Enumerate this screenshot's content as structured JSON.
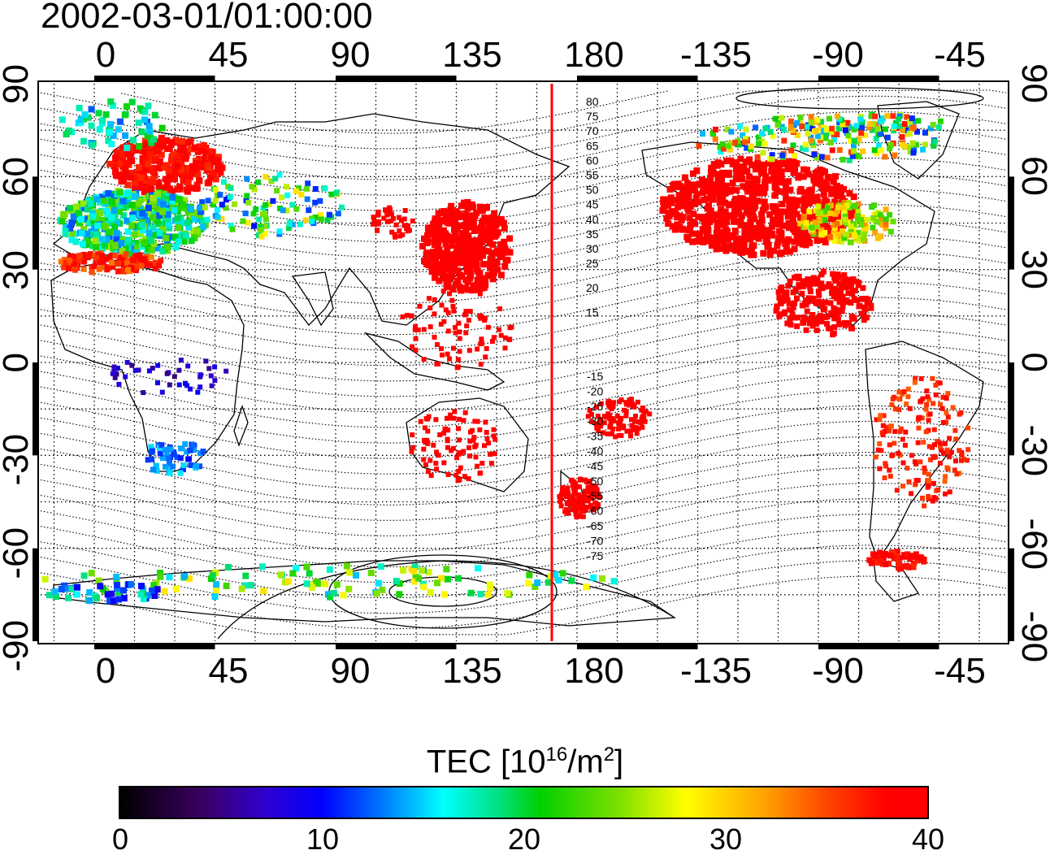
{
  "title": "2002-03-01/01:00:00",
  "axes": {
    "top_ticks": [
      "0",
      "45",
      "90",
      "135",
      "180",
      "-135",
      "-90",
      "-45"
    ],
    "bottom_ticks": [
      "0",
      "45",
      "90",
      "135",
      "180",
      "-135",
      "-90",
      "-45"
    ],
    "lat_ticks": [
      "90",
      "60",
      "30",
      "0",
      "-30",
      "-60",
      "-90"
    ]
  },
  "isoline_labels_north": [
    "80",
    "75",
    "70",
    "65",
    "60",
    "55",
    "50",
    "45",
    "40",
    "35",
    "30",
    "25",
    "20",
    "15"
  ],
  "isoline_labels_south": [
    "-15",
    "-20",
    "-25",
    "-30",
    "-35",
    "-40",
    "-45",
    "-50",
    "-55",
    "-60",
    "-65",
    "-70",
    "-75"
  ],
  "colorbar": {
    "label_main": "TEC  [10",
    "label_exp1": "16",
    "label_mid": "/m",
    "label_exp2": "2",
    "label_end": "]",
    "ticks": [
      "0",
      "10",
      "20",
      "30",
      "40"
    ],
    "range": [
      0,
      40
    ]
  },
  "colors": {
    "marker_line": "#ff0000",
    "high_tec": "#ff0000"
  },
  "map_extent": {
    "lon_start": -20,
    "lon_end": 340,
    "lat_min": -90,
    "lat_max": 90
  }
}
